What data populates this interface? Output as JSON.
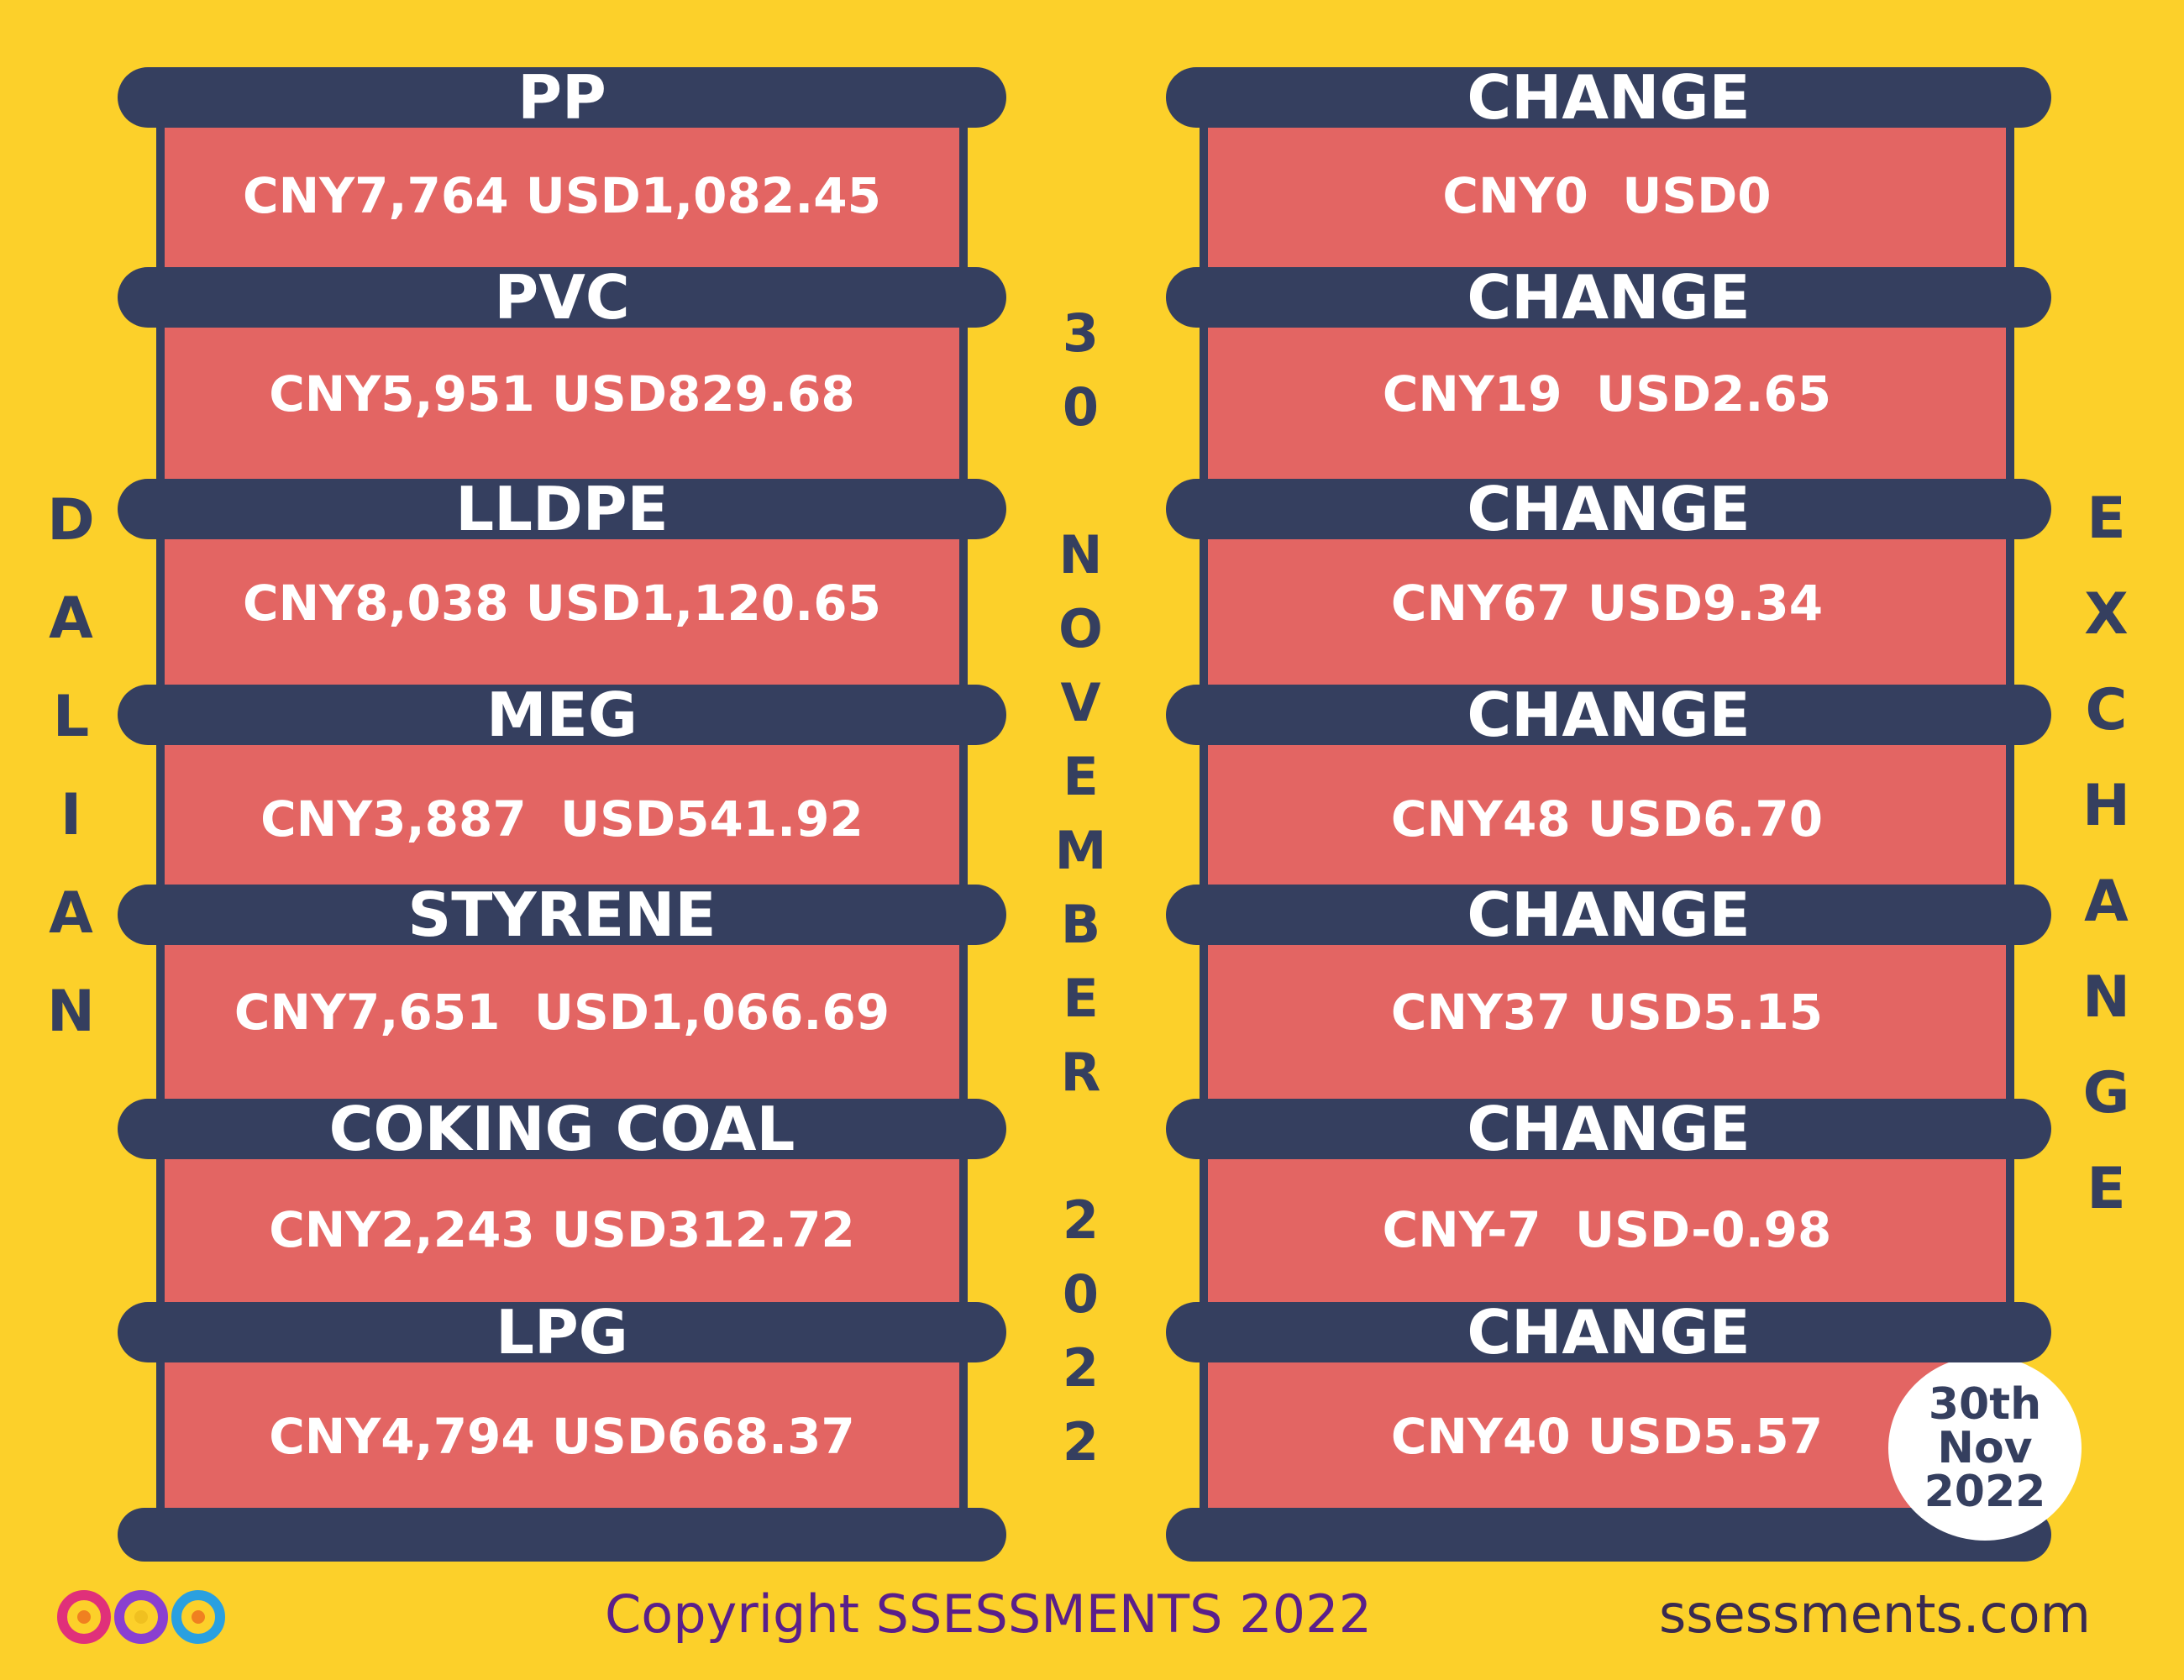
{
  "left_title": "DALIAN",
  "middle_title": "30 NOVEMBER 2022",
  "right_title": "EXCHANGE",
  "left": {
    "items": [
      {
        "name": "PP",
        "value": "CNY7,764 USD1,082.45"
      },
      {
        "name": "PVC",
        "value": "CNY5,951 USD829.68"
      },
      {
        "name": "LLDPE",
        "value": "CNY8,038 USD1,120.65"
      },
      {
        "name": "MEG",
        "value": "CNY3,887  USD541.92"
      },
      {
        "name": "STYRENE",
        "value": "CNY7,651  USD1,066.69"
      },
      {
        "name": "COKING COAL",
        "value": "CNY2,243 USD312.72"
      },
      {
        "name": "LPG",
        "value": "CNY4,794 USD668.37"
      }
    ]
  },
  "right": {
    "items": [
      {
        "label": "CHANGE",
        "value": "CNY0  USD0"
      },
      {
        "label": "CHANGE",
        "value": "CNY19  USD2.65"
      },
      {
        "label": "CHANGE",
        "value": "CNY67 USD9.34"
      },
      {
        "label": "CHANGE",
        "value": "CNY48 USD6.70"
      },
      {
        "label": "CHANGE",
        "value": "CNY37 USD5.15"
      },
      {
        "label": "CHANGE",
        "value": "CNY-7  USD-0.98"
      },
      {
        "label": "CHANGE",
        "value": "CNY40 USD5.57"
      }
    ]
  },
  "badge": {
    "lines": [
      "30th",
      "Nov",
      "2022"
    ]
  },
  "footer": {
    "copyright": "Copyright SSESSMENTS 2022",
    "website": "ssessments.com"
  }
}
